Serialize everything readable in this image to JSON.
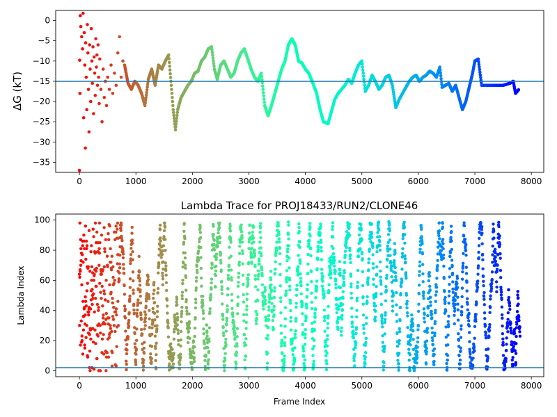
{
  "chart_data": [
    {
      "type": "scatter",
      "title": "",
      "xlabel": "",
      "ylabel": "ΔG (kT)",
      "xlim": [
        -420,
        8220
      ],
      "ylim": [
        -37.5,
        2.5
      ],
      "xticks": [
        0,
        1000,
        2000,
        3000,
        4000,
        5000,
        6000,
        7000,
        8000
      ],
      "yticks": [
        0,
        -5,
        -10,
        -15,
        -20,
        -25,
        -30,
        -35
      ],
      "hline": {
        "y": -15,
        "color": "#1f77b4"
      },
      "colormap": "rainbow (red at frame 0 → violet at last frame)",
      "grid": false,
      "legend": "none",
      "early_scatter": [
        [
          0,
          -37
        ],
        [
          5,
          -9.8
        ],
        [
          10,
          -18
        ],
        [
          15,
          1.2
        ],
        [
          25,
          -1.5
        ],
        [
          40,
          -4
        ],
        [
          55,
          -7
        ],
        [
          65,
          1.8
        ],
        [
          75,
          -24
        ],
        [
          85,
          -3
        ],
        [
          95,
          -11
        ],
        [
          105,
          -31.5
        ],
        [
          110,
          -5.5
        ],
        [
          120,
          -14
        ],
        [
          130,
          -22
        ],
        [
          140,
          -1
        ],
        [
          150,
          -8
        ],
        [
          160,
          -17
        ],
        [
          170,
          -27.5
        ],
        [
          180,
          -6
        ],
        [
          190,
          -12
        ],
        [
          200,
          -20
        ],
        [
          210,
          -2
        ],
        [
          220,
          -10
        ],
        [
          230,
          -15.5
        ],
        [
          240,
          -6.5
        ],
        [
          250,
          -23
        ],
        [
          260,
          -9
        ],
        [
          270,
          -13
        ],
        [
          280,
          -18.5
        ],
        [
          290,
          -4.5
        ],
        [
          300,
          -11.5
        ],
        [
          310,
          -8.5
        ],
        [
          320,
          -16
        ],
        [
          330,
          -6
        ],
        [
          340,
          -14
        ],
        [
          350,
          -20.5
        ],
        [
          360,
          -9.5
        ],
        [
          380,
          -17
        ],
        [
          400,
          -25
        ],
        [
          420,
          -12
        ],
        [
          440,
          -19
        ],
        [
          460,
          -15
        ],
        [
          480,
          -21
        ],
        [
          500,
          -14
        ],
        [
          530,
          -17
        ],
        [
          560,
          -11
        ],
        [
          590,
          -18
        ],
        [
          620,
          -13
        ],
        [
          650,
          -16
        ],
        [
          680,
          -8
        ],
        [
          710,
          -4
        ],
        [
          740,
          -14
        ],
        [
          770,
          -10
        ]
      ],
      "trace": [
        [
          800,
          -11
        ],
        [
          860,
          -15.5
        ],
        [
          920,
          -17
        ],
        [
          980,
          -15
        ],
        [
          1040,
          -16
        ],
        [
          1100,
          -18
        ],
        [
          1160,
          -21
        ],
        [
          1220,
          -14.5
        ],
        [
          1280,
          -12
        ],
        [
          1340,
          -16
        ],
        [
          1400,
          -11
        ],
        [
          1460,
          -12
        ],
        [
          1520,
          -10
        ],
        [
          1580,
          -8.5
        ],
        [
          1620,
          -15
        ],
        [
          1660,
          -22
        ],
        [
          1700,
          -27
        ],
        [
          1740,
          -22
        ],
        [
          1800,
          -19
        ],
        [
          1860,
          -17.5
        ],
        [
          1920,
          -16
        ],
        [
          1980,
          -15
        ],
        [
          2040,
          -13
        ],
        [
          2100,
          -12.5
        ],
        [
          2160,
          -10
        ],
        [
          2220,
          -9
        ],
        [
          2280,
          -7
        ],
        [
          2340,
          -6.5
        ],
        [
          2390,
          -12
        ],
        [
          2440,
          -14.5
        ],
        [
          2500,
          -11
        ],
        [
          2560,
          -10
        ],
        [
          2620,
          -12
        ],
        [
          2680,
          -14
        ],
        [
          2740,
          -13
        ],
        [
          2800,
          -10
        ],
        [
          2860,
          -8
        ],
        [
          2920,
          -7
        ],
        [
          2980,
          -9.5
        ],
        [
          3040,
          -12
        ],
        [
          3100,
          -14
        ],
        [
          3160,
          -15
        ],
        [
          3220,
          -13
        ],
        [
          3280,
          -21
        ],
        [
          3340,
          -23.5
        ],
        [
          3400,
          -21
        ],
        [
          3460,
          -18
        ],
        [
          3520,
          -15
        ],
        [
          3580,
          -12
        ],
        [
          3640,
          -10
        ],
        [
          3700,
          -6
        ],
        [
          3760,
          -4.5
        ],
        [
          3820,
          -6
        ],
        [
          3880,
          -10
        ],
        [
          3940,
          -10.5
        ],
        [
          4000,
          -12
        ],
        [
          4060,
          -13
        ],
        [
          4120,
          -15
        ],
        [
          4200,
          -18
        ],
        [
          4260,
          -22
        ],
        [
          4320,
          -25
        ],
        [
          4400,
          -25.5
        ],
        [
          4460,
          -22.5
        ],
        [
          4520,
          -19.5
        ],
        [
          4580,
          -18
        ],
        [
          4640,
          -17
        ],
        [
          4700,
          -16
        ],
        [
          4760,
          -14.5
        ],
        [
          4820,
          -15.5
        ],
        [
          4880,
          -13
        ],
        [
          4940,
          -11
        ],
        [
          5000,
          -10
        ],
        [
          5060,
          -17.5
        ],
        [
          5120,
          -16
        ],
        [
          5180,
          -13.5
        ],
        [
          5240,
          -15
        ],
        [
          5300,
          -17
        ],
        [
          5360,
          -16
        ],
        [
          5420,
          -14
        ],
        [
          5480,
          -13.5
        ],
        [
          5540,
          -16
        ],
        [
          5600,
          -21.5
        ],
        [
          5660,
          -19.5
        ],
        [
          5720,
          -18
        ],
        [
          5780,
          -16.5
        ],
        [
          5840,
          -15
        ],
        [
          5900,
          -14
        ],
        [
          5960,
          -13.5
        ],
        [
          6020,
          -15
        ],
        [
          6080,
          -14
        ],
        [
          6140,
          -13.5
        ],
        [
          6200,
          -12.5
        ],
        [
          6260,
          -13
        ],
        [
          6320,
          -14
        ],
        [
          6380,
          -11.5
        ],
        [
          6420,
          -16.5
        ],
        [
          6480,
          -16
        ],
        [
          6540,
          -15.5
        ],
        [
          6600,
          -17.5
        ],
        [
          6660,
          -16
        ],
        [
          6720,
          -19
        ],
        [
          6780,
          -22
        ],
        [
          6840,
          -20
        ],
        [
          6900,
          -16.5
        ],
        [
          6960,
          -13
        ],
        [
          7000,
          -10
        ],
        [
          7060,
          -9.5
        ],
        [
          7120,
          -16
        ],
        [
          7300,
          -16
        ],
        [
          7500,
          -16
        ],
        [
          7620,
          -15.5
        ],
        [
          7680,
          -15
        ],
        [
          7720,
          -18
        ],
        [
          7780,
          -17
        ]
      ]
    },
    {
      "type": "scatter",
      "title": "Lambda Trace for PROJ18433/RUN2/CLONE46",
      "xlabel": "Frame Index",
      "ylabel": "Lambda Index",
      "xlim": [
        -420,
        8220
      ],
      "ylim": [
        -4,
        104
      ],
      "xticks": [
        0,
        1000,
        2000,
        3000,
        4000,
        5000,
        6000,
        7000,
        8000
      ],
      "yticks": [
        0,
        20,
        40,
        60,
        80,
        100
      ],
      "hline": {
        "y": 2,
        "color": "#1f77b4"
      },
      "colormap": "rainbow (red at frame 0 → violet at last frame)",
      "grid": false,
      "legend": "none",
      "description_of_points": "lambda index (0–99) of every frame from 0 to ~7800"
    }
  ]
}
